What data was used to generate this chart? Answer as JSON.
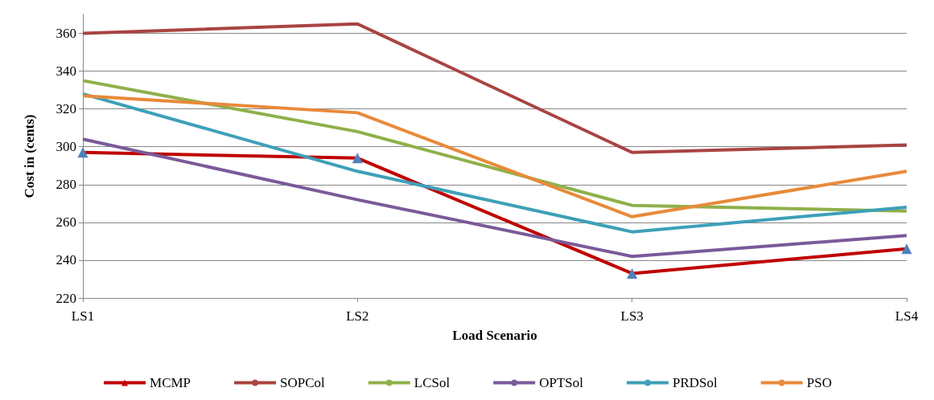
{
  "chart_data": {
    "type": "line",
    "xlabel": "Load Scenario",
    "ylabel": "Cost in (cents)",
    "categories": [
      "LS1",
      "LS2",
      "LS3",
      "LS4"
    ],
    "series": [
      {
        "name": "MCMP",
        "color": "#c00000",
        "values": [
          297,
          294,
          233,
          246
        ],
        "marker": "triangle"
      },
      {
        "name": "SOPCol",
        "color": "#a94442",
        "values": [
          360,
          365,
          297,
          301
        ],
        "marker": "none"
      },
      {
        "name": "LCSol",
        "color": "#8fb04a",
        "values": [
          335,
          308,
          269,
          266
        ],
        "marker": "none"
      },
      {
        "name": "OPTSol",
        "color": "#7a5a9a",
        "values": [
          304,
          272,
          242,
          253
        ],
        "marker": "none"
      },
      {
        "name": "PRDSol",
        "color": "#3ea0b8",
        "values": [
          328,
          287,
          255,
          268
        ],
        "marker": "none"
      },
      {
        "name": "PSO",
        "color": "#e88a3a",
        "values": [
          327,
          318,
          263,
          287
        ],
        "marker": "none"
      }
    ],
    "ylim": [
      220,
      370
    ],
    "yticks": [
      220,
      240,
      260,
      280,
      300,
      320,
      340,
      360
    ],
    "grid": "y",
    "legend": "bottom",
    "line_style": "solid"
  }
}
